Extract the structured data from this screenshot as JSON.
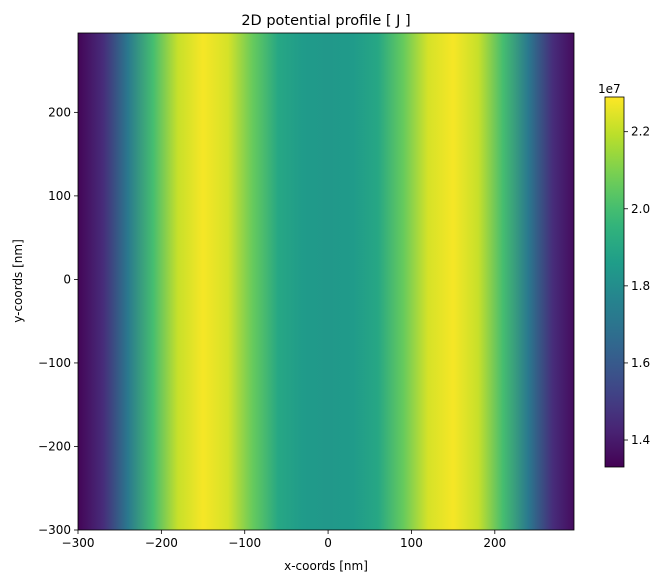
{
  "chart_data": {
    "type": "heatmap",
    "title": "2D potential profile [ J ]",
    "xlabel": "x-coords [nm]",
    "ylabel": "y-coords [nm]",
    "xlim": [
      -300,
      295
    ],
    "ylim": [
      -300,
      295
    ],
    "x_ticks": [
      -300,
      -200,
      -100,
      0,
      100,
      200
    ],
    "x_tick_labels": [
      "−300",
      "−200",
      "−100",
      "0",
      "100",
      "200"
    ],
    "y_ticks": [
      -300,
      -200,
      -100,
      0,
      100,
      200
    ],
    "y_tick_labels": [
      "−300",
      "−200",
      "−100",
      "0",
      "100",
      "200"
    ],
    "colormap": "viridis",
    "colorbar": {
      "range": [
        13300000.0,
        22900000.0
      ],
      "offset_label": "1e7",
      "ticks": [
        14000000.0,
        16000000.0,
        18000000.0,
        20000000.0,
        22000000.0
      ],
      "tick_labels": [
        "1.4",
        "1.6",
        "1.8",
        "2.0",
        "2.2"
      ]
    },
    "profile_note_x": [
      -300,
      -270,
      -240,
      -210,
      -180,
      -150,
      -120,
      -90,
      -60,
      -30,
      0,
      30,
      60,
      90,
      120,
      150,
      180,
      210,
      240,
      270,
      295
    ],
    "profile_values": [
      13400000.0,
      14500000.0,
      17200000.0,
      20000000.0,
      22100000.0,
      22800000.0,
      22300000.0,
      20600000.0,
      19000000.0,
      18500000.0,
      18400000.0,
      18500000.0,
      19000000.0,
      20600000.0,
      22300000.0,
      22800000.0,
      22100000.0,
      20000000.0,
      17200000.0,
      14500000.0,
      13600000.0
    ],
    "grid": false
  }
}
